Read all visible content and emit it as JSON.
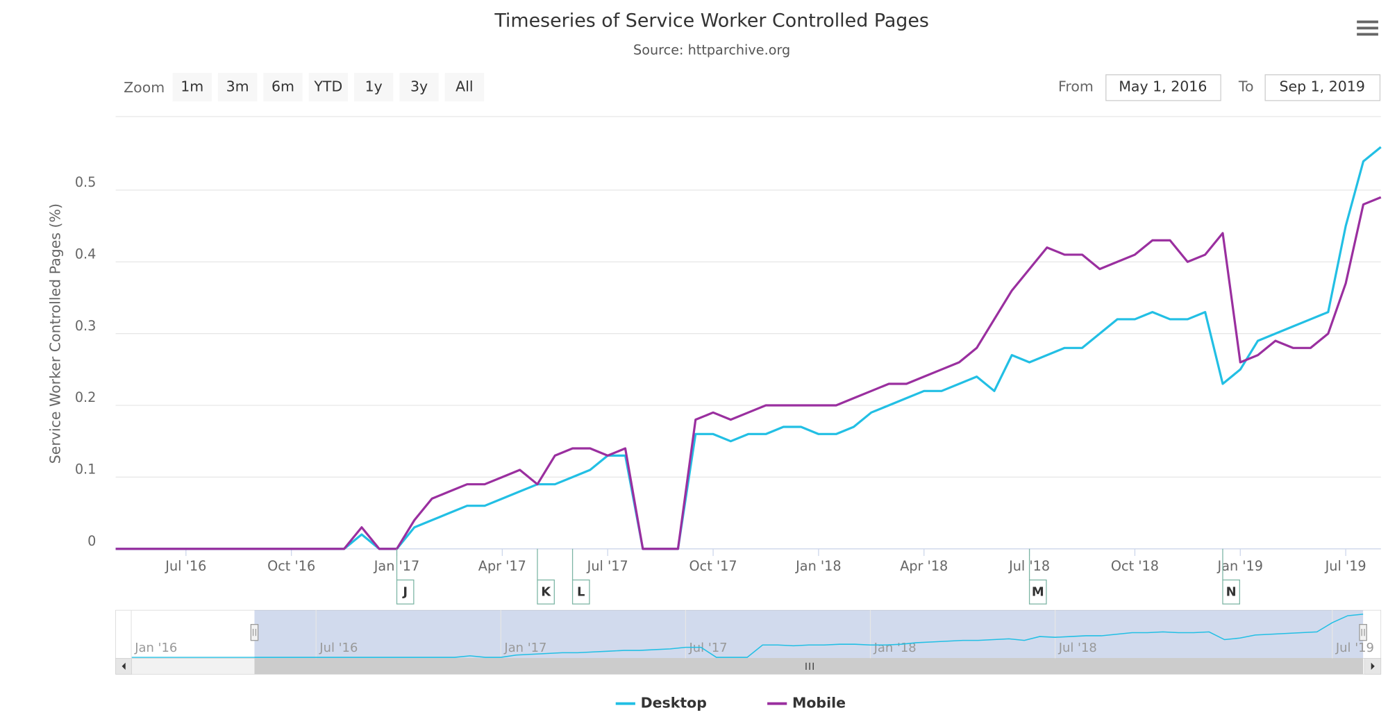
{
  "chart_data": {
    "type": "line",
    "title": "Timeseries of Service Worker Controlled Pages",
    "subtitle": "Source: httparchive.org",
    "y_label": "Service Worker Controlled Pages (%)",
    "x": [
      "2016-05-01",
      "2016-05-15",
      "2016-06-01",
      "2016-06-15",
      "2016-07-01",
      "2016-07-15",
      "2016-08-01",
      "2016-08-15",
      "2016-09-01",
      "2016-09-15",
      "2016-10-01",
      "2016-10-15",
      "2016-11-01",
      "2016-11-15",
      "2016-12-01",
      "2016-12-15",
      "2017-01-01",
      "2017-01-15",
      "2017-02-01",
      "2017-02-15",
      "2017-03-01",
      "2017-03-15",
      "2017-04-01",
      "2017-04-15",
      "2017-05-01",
      "2017-05-15",
      "2017-06-01",
      "2017-06-15",
      "2017-07-01",
      "2017-07-15",
      "2017-08-01",
      "2017-08-15",
      "2017-09-01",
      "2017-09-15",
      "2017-10-01",
      "2017-10-15",
      "2017-11-01",
      "2017-11-15",
      "2017-12-01",
      "2017-12-15",
      "2018-01-01",
      "2018-01-15",
      "2018-02-01",
      "2018-02-15",
      "2018-03-01",
      "2018-03-15",
      "2018-04-01",
      "2018-04-15",
      "2018-05-01",
      "2018-05-15",
      "2018-06-01",
      "2018-06-15",
      "2018-07-01",
      "2018-07-15",
      "2018-08-01",
      "2018-08-15",
      "2018-09-01",
      "2018-09-15",
      "2018-10-01",
      "2018-10-15",
      "2018-11-01",
      "2018-11-15",
      "2018-12-01",
      "2018-12-15",
      "2019-01-01",
      "2019-02-01",
      "2019-03-01",
      "2019-04-01",
      "2019-05-01",
      "2019-06-01",
      "2019-07-01",
      "2019-08-01",
      "2019-09-01"
    ],
    "series": [
      {
        "name": "Desktop",
        "color": "#22bfe4",
        "values": [
          0,
          0,
          0,
          0,
          0,
          0,
          0,
          0,
          0,
          0,
          0,
          0,
          0,
          0,
          0.02,
          0,
          0,
          0.03,
          0.04,
          0.05,
          0.06,
          0.06,
          0.07,
          0.08,
          0.09,
          0.09,
          0.1,
          0.11,
          0.13,
          0.13,
          0,
          0,
          0,
          0.16,
          0.16,
          0.15,
          0.16,
          0.16,
          0.17,
          0.17,
          0.16,
          0.16,
          0.17,
          0.19,
          0.2,
          0.21,
          0.22,
          0.22,
          0.23,
          0.24,
          0.22,
          0.27,
          0.26,
          0.27,
          0.28,
          0.28,
          0.3,
          0.32,
          0.32,
          0.33,
          0.32,
          0.32,
          0.33,
          0.23,
          0.25,
          0.29,
          0.3,
          0.31,
          0.32,
          0.33,
          0.45,
          0.54,
          0.56
        ]
      },
      {
        "name": "Mobile",
        "color": "#9a2f9f",
        "values": [
          0,
          0,
          0,
          0,
          0,
          0,
          0,
          0,
          0,
          0,
          0,
          0,
          0,
          0,
          0.03,
          0,
          0,
          0.04,
          0.07,
          0.08,
          0.09,
          0.09,
          0.1,
          0.11,
          0.09,
          0.13,
          0.14,
          0.14,
          0.13,
          0.14,
          0,
          0,
          0,
          0.18,
          0.19,
          0.18,
          0.19,
          0.2,
          0.2,
          0.2,
          0.2,
          0.2,
          0.21,
          0.22,
          0.23,
          0.23,
          0.24,
          0.25,
          0.26,
          0.28,
          0.32,
          0.36,
          0.39,
          0.42,
          0.41,
          0.41,
          0.39,
          0.4,
          0.41,
          0.43,
          0.43,
          0.4,
          0.41,
          0.44,
          0.26,
          0.27,
          0.29,
          0.28,
          0.28,
          0.3,
          0.37,
          0.48,
          0.49
        ]
      }
    ],
    "ylim": [
      0,
      0.6
    ],
    "yticks": [
      0,
      0.1,
      0.2,
      0.3,
      0.4,
      0.5
    ],
    "xticks": [
      {
        "value": "2016-07-01",
        "label": "Jul '16"
      },
      {
        "value": "2016-10-01",
        "label": "Oct '16"
      },
      {
        "value": "2017-01-01",
        "label": "Jan '17"
      },
      {
        "value": "2017-04-01",
        "label": "Apr '17"
      },
      {
        "value": "2017-07-01",
        "label": "Jul '17"
      },
      {
        "value": "2017-10-01",
        "label": "Oct '17"
      },
      {
        "value": "2018-01-01",
        "label": "Jan '18"
      },
      {
        "value": "2018-04-01",
        "label": "Apr '18"
      },
      {
        "value": "2018-07-01",
        "label": "Jul '18"
      },
      {
        "value": "2018-10-01",
        "label": "Oct '18"
      },
      {
        "value": "2019-01-01",
        "label": "Jan '19"
      },
      {
        "value": "2019-07-01",
        "label": "Jul '19"
      }
    ],
    "grid": true,
    "flags": [
      {
        "x": "2017-01-01",
        "title": "J"
      },
      {
        "x": "2017-05-01",
        "title": "K"
      },
      {
        "x": "2017-06-01",
        "title": "L"
      },
      {
        "x": "2018-07-01",
        "title": "M"
      },
      {
        "x": "2018-12-15",
        "title": "N"
      }
    ],
    "navigator_xticks": [
      {
        "value": "2016-01-01",
        "label": "Jan '16"
      },
      {
        "value": "2016-07-01",
        "label": "Jul '16"
      },
      {
        "value": "2017-01-01",
        "label": "Jan '17"
      },
      {
        "value": "2017-07-01",
        "label": "Jul '17"
      },
      {
        "value": "2018-01-01",
        "label": "Jan '18"
      },
      {
        "value": "2018-07-01",
        "label": "Jul '18"
      },
      {
        "value": "2019-07-01",
        "label": "Jul '19"
      }
    ]
  },
  "range_selector": {
    "zoom_label": "Zoom",
    "buttons": [
      "1m",
      "3m",
      "6m",
      "YTD",
      "1y",
      "3y",
      "All"
    ],
    "from_label": "From",
    "from": "May 1, 2016",
    "to_label": "To",
    "to": "Sep 1, 2019"
  }
}
